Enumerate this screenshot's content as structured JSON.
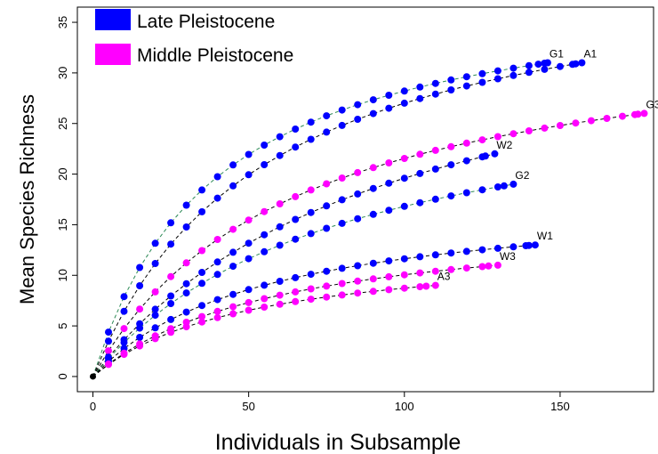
{
  "chart_data": {
    "type": "scatter",
    "title": "",
    "xlabel": "Individuals in Subsample",
    "ylabel": "Mean Species Richness",
    "xlim": [
      -5,
      180
    ],
    "ylim": [
      -1.5,
      36.5
    ],
    "xticks": [
      0,
      50,
      100,
      150
    ],
    "yticks": [
      0,
      5,
      10,
      15,
      20,
      25,
      30,
      35
    ],
    "legend_position": "top-left",
    "legend": [
      {
        "name": "Late Pleistocene",
        "color": "#0000ff"
      },
      {
        "name": "Middle Pleistocene",
        "color": "#ff00ff"
      }
    ],
    "origin": {
      "x": 0,
      "y": 0,
      "color": "#000000"
    },
    "series": [
      {
        "label": "G1",
        "group": "Late Pleistocene",
        "color": "#0000ff",
        "line_color": "#2e8b57",
        "xmax": 146,
        "ymax": 31.0,
        "k": 40
      },
      {
        "label": "A1",
        "group": "Late Pleistocene",
        "color": "#0000ff",
        "line_color": "#000000",
        "xmax": 157,
        "ymax": 31.0,
        "k": 55
      },
      {
        "label": "G3",
        "group": "Middle Pleistocene",
        "color": "#ff00ff",
        "line_color": "#000000",
        "xmax": 177,
        "ymax": 26.0,
        "k": 65
      },
      {
        "label": "W2",
        "group": "Late Pleistocene",
        "color": "#0000ff",
        "line_color": "#000000",
        "xmax": 129,
        "ymax": 22.0,
        "k": 95
      },
      {
        "label": "G2",
        "group": "Late Pleistocene",
        "color": "#0000ff",
        "line_color": "#2e8b57",
        "xmax": 135,
        "ymax": 19.0,
        "k": 80
      },
      {
        "label": "W1",
        "group": "Late Pleistocene",
        "color": "#0000ff",
        "line_color": "#000000",
        "xmax": 142,
        "ymax": 13.0,
        "k": 55
      },
      {
        "label": "W3",
        "group": "Middle Pleistocene",
        "color": "#ff00ff",
        "line_color": "#000000",
        "xmax": 130,
        "ymax": 11.0,
        "k": 60
      },
      {
        "label": "A3",
        "group": "Middle Pleistocene",
        "color": "#ff00ff",
        "line_color": "#000000",
        "xmax": 110,
        "ymax": 9.0,
        "k": 50
      }
    ]
  }
}
